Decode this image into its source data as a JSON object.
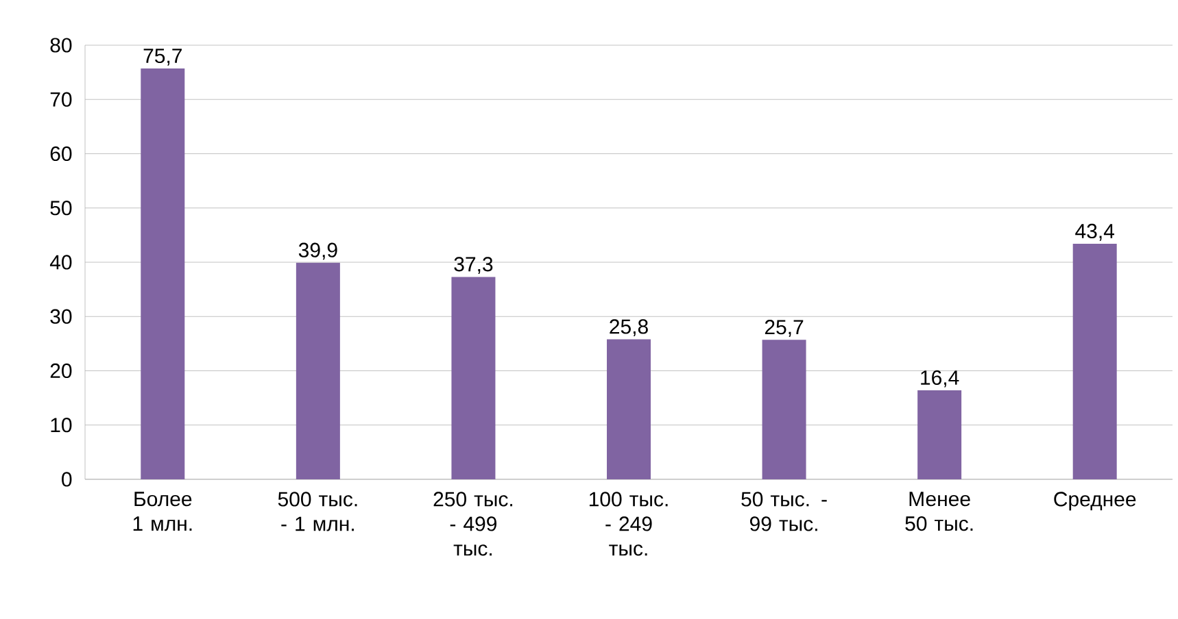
{
  "chart_data": {
    "type": "bar",
    "categories": [
      "Более 1 млн.",
      "500 тыс. - 1 млн.",
      "250 тыс. - 499 тыс.",
      "100 тыс. - 249 тыс.",
      "50 тыс. - 99 тыс.",
      "Менее 50 тыс.",
      "Среднее"
    ],
    "values": [
      75.7,
      39.9,
      37.3,
      25.8,
      25.7,
      16.4,
      43.4
    ],
    "value_labels": [
      "75,7",
      "39,9",
      "37,3",
      "25,8",
      "25,7",
      "16,4",
      "43,4"
    ],
    "color": "#8064a2",
    "ylim": [
      0,
      80
    ],
    "yticks": [
      0,
      10,
      20,
      30,
      40,
      50,
      60,
      70,
      80
    ],
    "grid": "y"
  }
}
